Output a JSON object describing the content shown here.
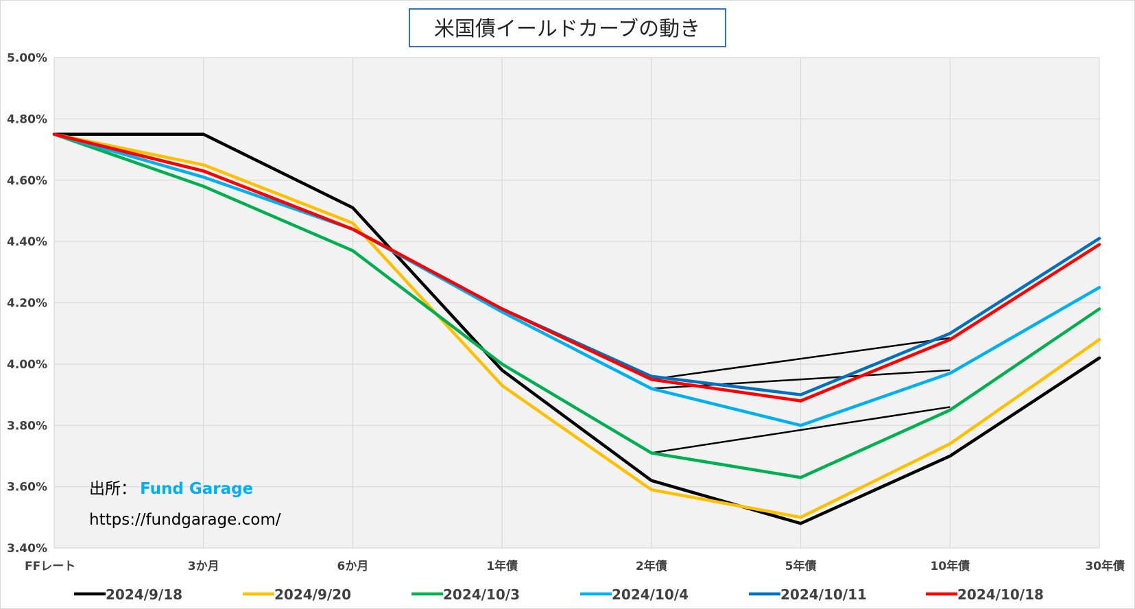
{
  "chart_data": {
    "type": "line",
    "title": "米国債イールドカーブの動き",
    "categories": [
      "FFレート",
      "3か月",
      "6か月",
      "1年債",
      "2年債",
      "5年債",
      "10年債",
      "30年債"
    ],
    "ylim": [
      3.4,
      5.0
    ],
    "yticks": [
      "5.00%",
      "4.80%",
      "4.60%",
      "4.40%",
      "4.20%",
      "4.00%",
      "3.80%",
      "3.60%",
      "3.40%"
    ],
    "ytick_values": [
      5.0,
      4.8,
      4.6,
      4.4,
      4.2,
      4.0,
      3.8,
      3.6,
      3.4
    ],
    "grid": true,
    "legend_position": "bottom",
    "series": [
      {
        "name": "2024/9/18",
        "color": "#000000",
        "values": [
          4.75,
          4.75,
          4.51,
          3.98,
          3.62,
          3.48,
          3.7,
          4.02
        ]
      },
      {
        "name": "2024/9/20",
        "color": "#FFC000",
        "values": [
          4.75,
          4.65,
          4.46,
          3.93,
          3.59,
          3.5,
          3.74,
          4.08
        ]
      },
      {
        "name": "2024/10/3",
        "color": "#00B050",
        "values": [
          4.75,
          4.58,
          4.37,
          4.0,
          3.71,
          3.63,
          3.85,
          4.18
        ]
      },
      {
        "name": "2024/10/4",
        "color": "#00B0F0",
        "values": [
          4.75,
          4.61,
          4.44,
          4.17,
          3.92,
          3.8,
          3.97,
          4.25
        ]
      },
      {
        "name": "2024/10/11",
        "color": "#0070C0",
        "values": [
          4.75,
          4.63,
          4.44,
          4.18,
          3.96,
          3.9,
          4.1,
          4.41
        ]
      },
      {
        "name": "2024/10/18",
        "color": "#FF0000",
        "values": [
          4.75,
          4.63,
          4.44,
          4.18,
          3.95,
          3.88,
          4.08,
          4.39
        ]
      }
    ],
    "annotations": [
      {
        "type": "line",
        "color": "#000000",
        "from": {
          "x": "2年債",
          "y": 3.95
        },
        "to": {
          "x": "10年債",
          "y": 4.085
        }
      },
      {
        "type": "line",
        "color": "#000000",
        "from": {
          "x": "2年債",
          "y": 3.92
        },
        "to": {
          "x": "10年債",
          "y": 3.98
        }
      },
      {
        "type": "line",
        "color": "#000000",
        "from": {
          "x": "2年債",
          "y": 3.71
        },
        "to": {
          "x": "10年債",
          "y": 3.86
        }
      }
    ]
  },
  "source": {
    "label": "出所：",
    "name": "Fund Garage",
    "name_color": "#00B0F0",
    "url": "https://fundgarage.com/"
  }
}
